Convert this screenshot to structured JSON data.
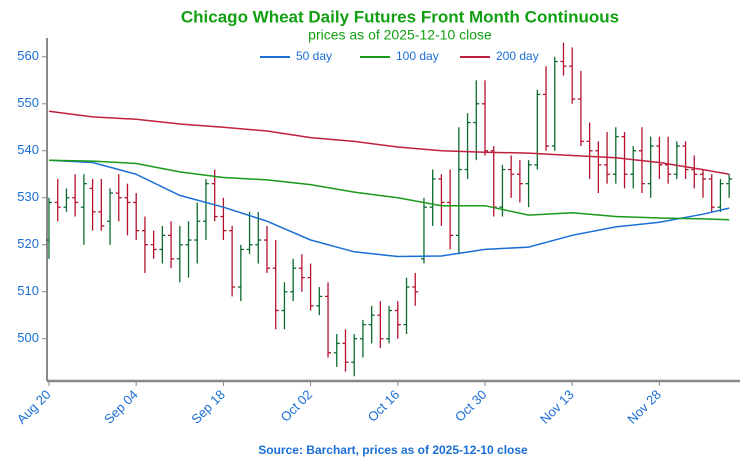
{
  "chart_data": {
    "type": "ohlc",
    "title": "Chicago Wheat Daily Futures Front Month Continuous",
    "subtitle": "prices as of 2025-12-10 close",
    "source": "Source: Barchart, prices as of 2025-12-10 close",
    "categories": [
      "Aug 20",
      null,
      null,
      null,
      null,
      null,
      null,
      null,
      null,
      null,
      "Sep 04",
      null,
      null,
      null,
      null,
      null,
      null,
      null,
      null,
      null,
      "Sep 18",
      null,
      null,
      null,
      null,
      null,
      null,
      null,
      null,
      null,
      "Oct 02",
      null,
      null,
      null,
      null,
      null,
      null,
      null,
      null,
      null,
      "Oct 16",
      null,
      null,
      null,
      null,
      null,
      null,
      null,
      null,
      null,
      "Oct 30",
      null,
      null,
      null,
      null,
      null,
      null,
      null,
      null,
      null,
      "Nov 13",
      null,
      null,
      null,
      null,
      null,
      null,
      null,
      null,
      null,
      "Nov 28",
      null,
      null,
      null,
      null,
      null,
      null,
      null,
      null
    ],
    "open": [
      521,
      529,
      528,
      530,
      528,
      532,
      527,
      525,
      531,
      530,
      529,
      523,
      520,
      519,
      522,
      517,
      520,
      521,
      525,
      533,
      526,
      523,
      511,
      519,
      520,
      521,
      515,
      506,
      510,
      515,
      513,
      507,
      509,
      497,
      499,
      495,
      500,
      503,
      505,
      500,
      506,
      503,
      511,
      517,
      528,
      534,
      529,
      522,
      536,
      546,
      550,
      540,
      528,
      536,
      535,
      533,
      537,
      552,
      541,
      559,
      558,
      551,
      542,
      540,
      537,
      535,
      543,
      535,
      540,
      533,
      541,
      537,
      535,
      541,
      536,
      535,
      534,
      528,
      533
    ],
    "high": [
      530,
      534,
      532,
      535,
      535,
      534,
      534,
      532,
      535,
      533,
      531,
      526,
      523,
      524,
      525,
      524,
      525,
      529,
      534,
      536,
      530,
      524,
      520,
      527,
      527,
      524,
      521,
      512,
      517,
      518,
      516,
      511,
      512,
      501,
      502,
      501,
      504,
      507,
      508,
      507,
      508,
      513,
      514,
      530,
      536,
      535,
      536,
      545,
      548,
      555,
      555,
      541,
      537,
      539,
      538,
      538,
      553,
      558,
      560,
      563,
      562,
      557,
      546,
      542,
      544,
      545,
      544,
      541,
      545,
      543,
      543,
      543,
      542,
      542,
      539,
      536,
      535,
      534,
      535
    ],
    "low": [
      517,
      525,
      527,
      526,
      520,
      523,
      523,
      520,
      525,
      522,
      521,
      514,
      517,
      516,
      515,
      512,
      513,
      516,
      521,
      525,
      521,
      509,
      508,
      518,
      516,
      514,
      502,
      502,
      508,
      510,
      506,
      505,
      496,
      494,
      493,
      492,
      496,
      499,
      498,
      499,
      500,
      501,
      507,
      516,
      524,
      524,
      519,
      518,
      534,
      538,
      539,
      526,
      526,
      530,
      529,
      528,
      536,
      540,
      540,
      556,
      550,
      541,
      534,
      531,
      533,
      533,
      532,
      532,
      531,
      530,
      534,
      533,
      534,
      534,
      532,
      530,
      527,
      527,
      530
    ],
    "close": [
      529,
      528,
      530,
      529,
      533,
      527,
      524,
      531,
      530,
      529,
      523,
      520,
      519,
      522,
      517,
      520,
      521,
      525,
      533,
      526,
      523,
      511,
      519,
      520,
      521,
      515,
      506,
      510,
      515,
      513,
      507,
      509,
      497,
      499,
      495,
      500,
      503,
      505,
      500,
      506,
      503,
      511,
      510,
      528,
      534,
      529,
      522,
      536,
      546,
      550,
      540,
      528,
      536,
      535,
      533,
      537,
      552,
      541,
      559,
      558,
      551,
      542,
      540,
      537,
      535,
      543,
      535,
      540,
      533,
      541,
      537,
      535,
      541,
      536,
      535,
      534,
      528,
      533,
      534
    ],
    "up_color": "#0b6b2e",
    "down_color": "#b3122e",
    "series": [
      {
        "name": "50 day",
        "color": "#1a6fd6",
        "x": [
          0,
          5,
          10,
          15,
          20,
          25,
          30,
          35,
          40,
          45,
          50,
          55,
          60,
          65,
          70,
          75,
          78
        ],
        "values": [
          538,
          537.5,
          535,
          530.5,
          528,
          525,
          521,
          518.5,
          517.5,
          517.6,
          519,
          519.5,
          522,
          523.8,
          524.8,
          526.5,
          527.8
        ]
      },
      {
        "name": "100 day",
        "color": "#1a9a1a",
        "x": [
          0,
          5,
          10,
          15,
          20,
          25,
          30,
          35,
          40,
          45,
          50,
          55,
          60,
          65,
          70,
          75,
          78
        ],
        "values": [
          538,
          537.8,
          537.3,
          535.5,
          534.3,
          533.8,
          532.8,
          531.2,
          530,
          528.3,
          528.3,
          526.3,
          526.8,
          526,
          525.7,
          525.5,
          525.3
        ]
      },
      {
        "name": "200 day",
        "color": "#c0203f",
        "x": [
          0,
          5,
          10,
          15,
          20,
          25,
          30,
          35,
          40,
          45,
          50,
          55,
          60,
          65,
          70,
          75,
          78
        ],
        "values": [
          548.4,
          547.2,
          546.7,
          545.7,
          545,
          544.2,
          542.8,
          542,
          540.8,
          540,
          539.7,
          539.5,
          539,
          538.5,
          537.5,
          536,
          535
        ]
      }
    ],
    "ylim": [
      491,
      564
    ],
    "yticks": [
      500,
      510,
      520,
      530,
      540,
      550,
      560
    ]
  }
}
